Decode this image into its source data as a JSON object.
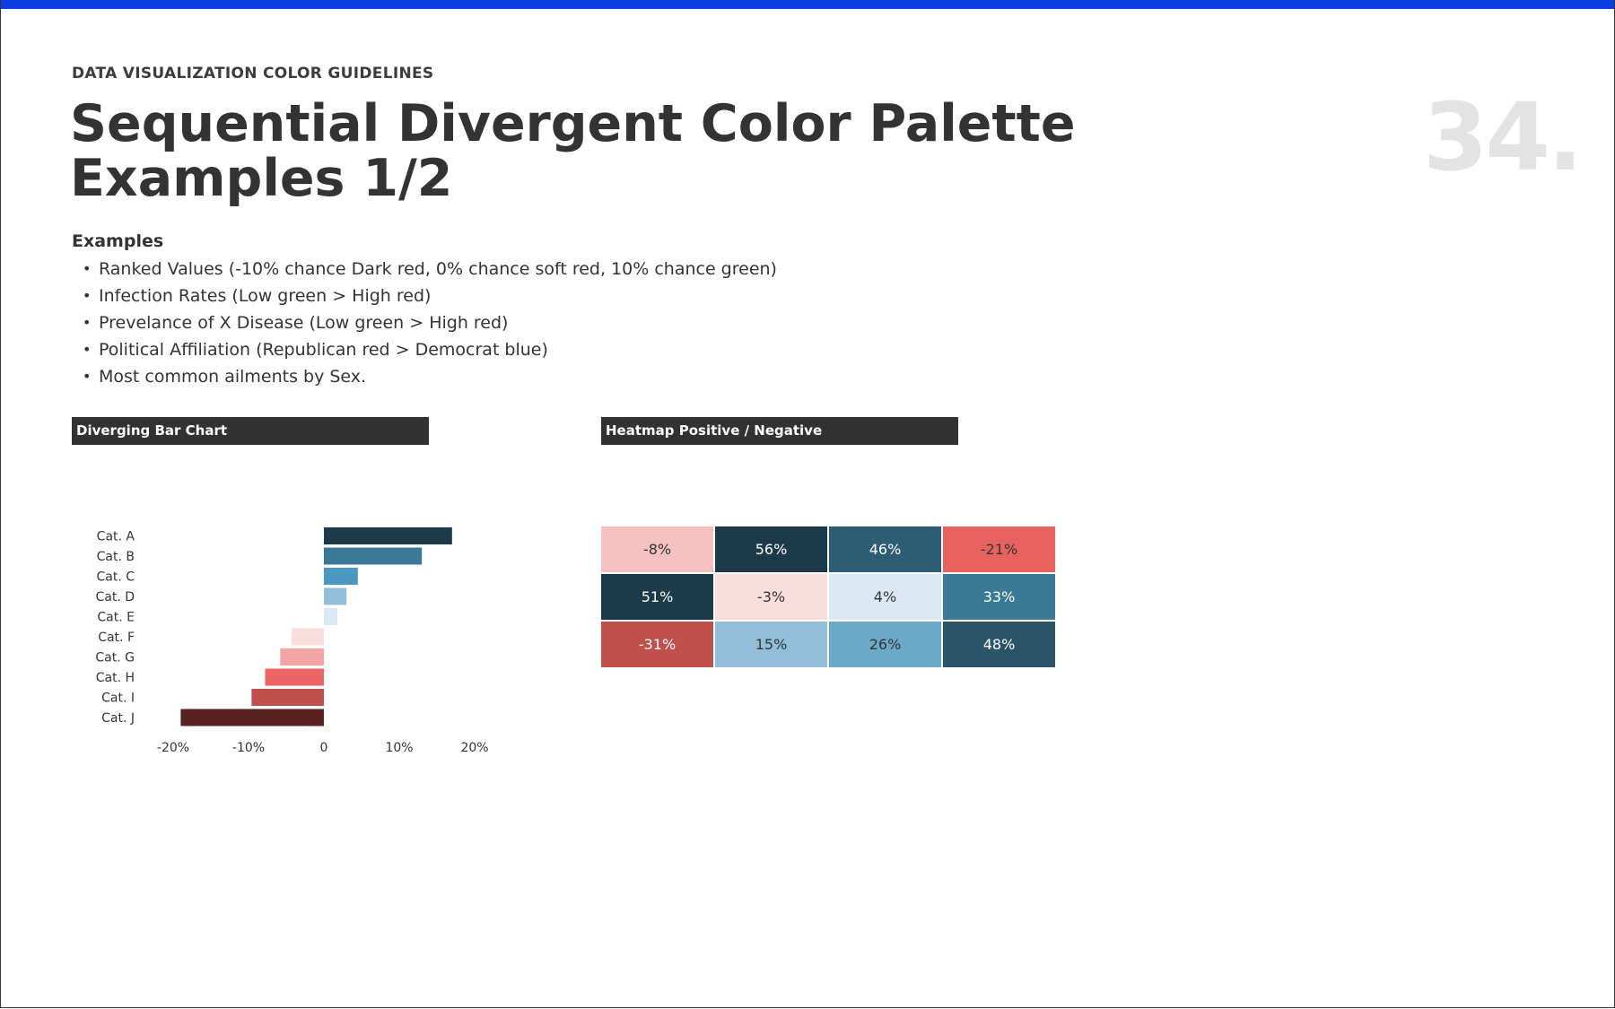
{
  "header": {
    "eyebrow": "DATA VISUALIZATION COLOR GUIDELINES",
    "title_line1": "Sequential Divergent Color Palette",
    "title_line2": "Examples 1/2",
    "page_number": "34."
  },
  "colors": {
    "top_bar": "#0a3ee0",
    "panel_header": "#323232",
    "page_number": "#e3e3e3"
  },
  "examples": {
    "heading": "Examples",
    "items": [
      "Ranked Values (-10% chance Dark red, 0% chance soft red, 10% chance green)",
      "Infection Rates (Low green > High red)",
      "Prevelance of X Disease (Low green > High red)",
      "Political Affiliation (Republican red > Democrat blue)",
      "Most common ailments by Sex."
    ]
  },
  "panels": {
    "bar_title": "Diverging Bar Chart",
    "heat_title": "Heatmap Positive / Negative"
  },
  "chart_data": [
    {
      "type": "bar",
      "orientation": "horizontal",
      "title": "Diverging Bar Chart",
      "categories": [
        "Cat. A",
        "Cat. B",
        "Cat. C",
        "Cat. D",
        "Cat. E",
        "Cat. F",
        "Cat. G",
        "Cat. H",
        "Cat. I",
        "Cat. J"
      ],
      "values": [
        17,
        13,
        4.5,
        3,
        1.8,
        -4.3,
        -5.8,
        -7.8,
        -9.6,
        -19
      ],
      "colors": [
        "#1d3a4a",
        "#3b7a96",
        "#4a98bf",
        "#91bfd9",
        "#dbe9f3",
        "#fadddd",
        "#f2a5a3",
        "#ea6563",
        "#c0504e",
        "#5a2123"
      ],
      "xlim": [
        -20,
        20
      ],
      "xticks": [
        -20,
        -10,
        0,
        10,
        20
      ],
      "xtick_labels": [
        "-20%",
        "-10%",
        "0",
        "10%",
        "20%"
      ]
    },
    {
      "type": "heatmap",
      "title": "Heatmap Positive / Negative",
      "rows": [
        [
          -8,
          56,
          46,
          -21
        ],
        [
          51,
          -3,
          4,
          33
        ],
        [
          -31,
          15,
          26,
          48
        ]
      ],
      "labels": [
        [
          "-8%",
          "56%",
          "46%",
          "-21%"
        ],
        [
          "51%",
          "-3%",
          "4%",
          "33%"
        ],
        [
          "-31%",
          "15%",
          "26%",
          "48%"
        ]
      ],
      "cell_colors": [
        [
          "#f6c1c1",
          "#1d3a4a",
          "#2c5d72",
          "#e86360"
        ],
        [
          "#1d3a4a",
          "#fadddd",
          "#dbe9f3",
          "#3b7a96"
        ],
        [
          "#c0504e",
          "#91bfd9",
          "#6aaac8",
          "#2a5569"
        ]
      ],
      "text_colors": [
        [
          "#333333",
          "#ffffff",
          "#ffffff",
          "#333333"
        ],
        [
          "#ffffff",
          "#333333",
          "#333333",
          "#ffffff"
        ],
        [
          "#ffffff",
          "#333333",
          "#333333",
          "#ffffff"
        ]
      ]
    }
  ]
}
